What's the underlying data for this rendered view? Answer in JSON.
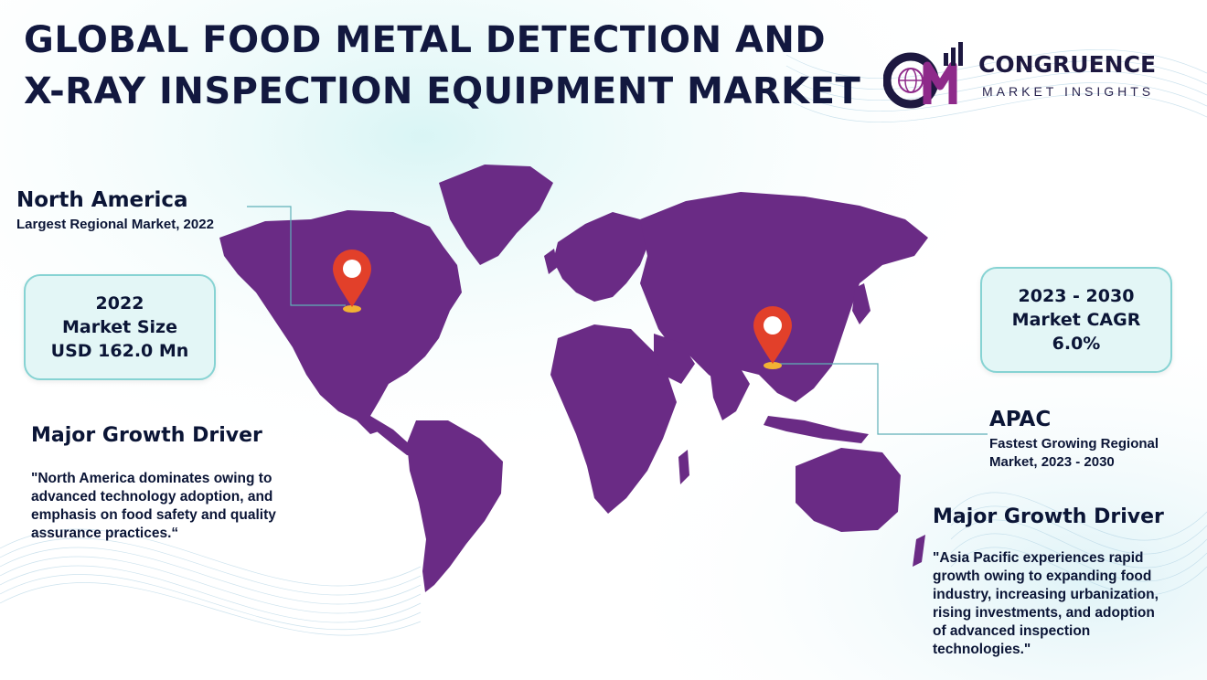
{
  "title": "GLOBAL FOOD METAL DETECTION AND X-RAY INSPECTION EQUIPMENT MARKET",
  "logo": {
    "name": "CONGRUENCE",
    "tagline": "MARKET INSIGHTS",
    "colors": {
      "primary": "#1d1840",
      "accent": "#8e2a8a"
    }
  },
  "colors": {
    "map": "#6a2b85",
    "pin": "#e2402a",
    "box_bg": "#e3f6f6",
    "box_border": "#86d3d3",
    "leader": "#5fb0b8"
  },
  "regions": {
    "north_america": {
      "name": "North America",
      "subtitle": "Largest Regional Market, 2022"
    },
    "apac": {
      "name": "APAC",
      "subtitle_line1": "Fastest Growing Regional",
      "subtitle_line2": "Market, 2023 - 2030"
    }
  },
  "stats": {
    "market_size": {
      "year": "2022",
      "label": "Market Size",
      "value": "USD 162.0 Mn"
    },
    "cagr": {
      "period": "2023 - 2030",
      "label": "Market CAGR",
      "value": "6.0%"
    }
  },
  "drivers": {
    "left": {
      "title": "Major Growth Driver",
      "lines": [
        "\"North America dominates owing to",
        "advanced technology adoption, and",
        "emphasis on food safety and quality",
        "assurance practices.“"
      ]
    },
    "right": {
      "title": "Major Growth Driver",
      "lines": [
        "\"Asia Pacific experiences rapid",
        "growth owing to expanding food",
        "industry, increasing urbanization,",
        "rising investments, and adoption",
        "of advanced inspection",
        "technologies.\""
      ]
    }
  }
}
